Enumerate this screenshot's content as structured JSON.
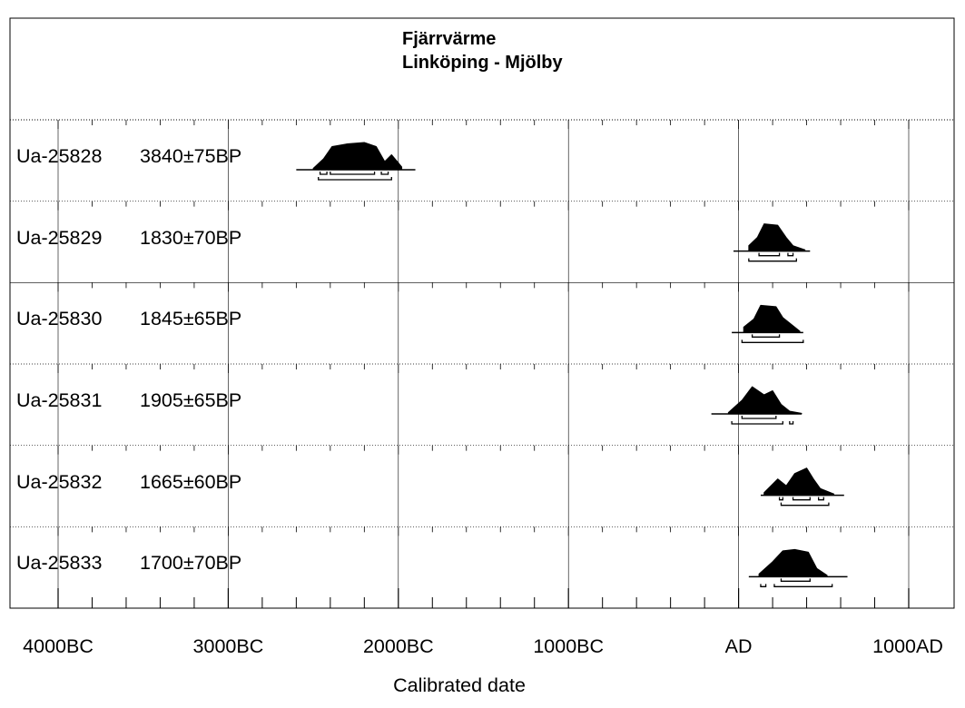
{
  "header_text": "",
  "chart_data": {
    "type": "radiocarbon-calibration",
    "title": "Fjärrvärme",
    "subtitle": "Linköping - Mjölby",
    "xlabel": "Calibrated date",
    "xlim": [
      -4000,
      1000
    ],
    "xticks": [
      {
        "value": -4000,
        "label": "4000BC"
      },
      {
        "value": -3000,
        "label": "3000BC"
      },
      {
        "value": -2000,
        "label": "2000BC"
      },
      {
        "value": -1000,
        "label": "1000BC"
      },
      {
        "value": 0,
        "label": "AD"
      },
      {
        "value": 1000,
        "label": "1000AD"
      }
    ],
    "grid": true,
    "samples": [
      {
        "lab": "Ua-25828",
        "date": "3840±75BP",
        "peaks": [
          [
            -2500,
            0.05
          ],
          [
            -2440,
            0.4
          ],
          [
            -2390,
            0.85
          ],
          [
            -2300,
            0.95
          ],
          [
            -2200,
            1.0
          ],
          [
            -2130,
            0.85
          ],
          [
            -2080,
            0.3
          ],
          [
            -2040,
            0.55
          ],
          [
            -1980,
            0.1
          ]
        ],
        "range": [
          -2600,
          -1900
        ],
        "sigma1": [
          [
            -2460,
            -2420
          ],
          [
            -2400,
            -2140
          ],
          [
            -2100,
            -2060
          ]
        ],
        "sigma2": [
          [
            -2470,
            -2040
          ]
        ]
      },
      {
        "lab": "Ua-25829",
        "date": "1830±70BP",
        "peaks": [
          [
            60,
            0.2
          ],
          [
            110,
            0.5
          ],
          [
            150,
            1.0
          ],
          [
            230,
            0.95
          ],
          [
            280,
            0.5
          ],
          [
            320,
            0.2
          ],
          [
            390,
            0.05
          ]
        ],
        "range": [
          -30,
          420
        ],
        "sigma1": [
          [
            120,
            240
          ],
          [
            290,
            320
          ]
        ],
        "sigma2": [
          [
            60,
            340
          ]
        ]
      },
      {
        "lab": "Ua-25830",
        "date": "1845±65BP",
        "peaks": [
          [
            30,
            0.2
          ],
          [
            90,
            0.5
          ],
          [
            130,
            1.0
          ],
          [
            220,
            0.95
          ],
          [
            260,
            0.55
          ],
          [
            310,
            0.3
          ],
          [
            360,
            0.05
          ]
        ],
        "range": [
          -40,
          380
        ],
        "sigma1": [
          [
            80,
            240
          ]
        ],
        "sigma2": [
          [
            20,
            380
          ]
        ]
      },
      {
        "lab": "Ua-25831",
        "date": "1905±65BP",
        "peaks": [
          [
            -60,
            0.05
          ],
          [
            20,
            0.5
          ],
          [
            80,
            1.0
          ],
          [
            150,
            0.7
          ],
          [
            200,
            0.85
          ],
          [
            250,
            0.35
          ],
          [
            300,
            0.1
          ],
          [
            370,
            0.02
          ]
        ],
        "range": [
          -160,
          370
        ],
        "sigma1": [
          [
            20,
            220
          ]
        ],
        "sigma2": [
          [
            -40,
            260
          ],
          [
            300,
            320
          ]
        ]
      },
      {
        "lab": "Ua-25832",
        "date": "1665±60BP",
        "peaks": [
          [
            150,
            0.1
          ],
          [
            230,
            0.6
          ],
          [
            280,
            0.35
          ],
          [
            330,
            0.8
          ],
          [
            400,
            1.0
          ],
          [
            440,
            0.6
          ],
          [
            480,
            0.25
          ],
          [
            560,
            0.05
          ]
        ],
        "range": [
          130,
          620
        ],
        "sigma1": [
          [
            240,
            260
          ],
          [
            320,
            420
          ],
          [
            470,
            500
          ]
        ],
        "sigma2": [
          [
            250,
            530
          ]
        ]
      },
      {
        "lab": "Ua-25833",
        "date": "1700±70BP",
        "peaks": [
          [
            120,
            0.1
          ],
          [
            200,
            0.55
          ],
          [
            260,
            0.95
          ],
          [
            330,
            1.0
          ],
          [
            410,
            0.9
          ],
          [
            460,
            0.3
          ],
          [
            520,
            0.05
          ]
        ],
        "range": [
          60,
          640
        ],
        "sigma1": [
          [
            250,
            420
          ]
        ],
        "sigma2": [
          [
            130,
            160
          ],
          [
            210,
            550
          ]
        ]
      }
    ]
  }
}
